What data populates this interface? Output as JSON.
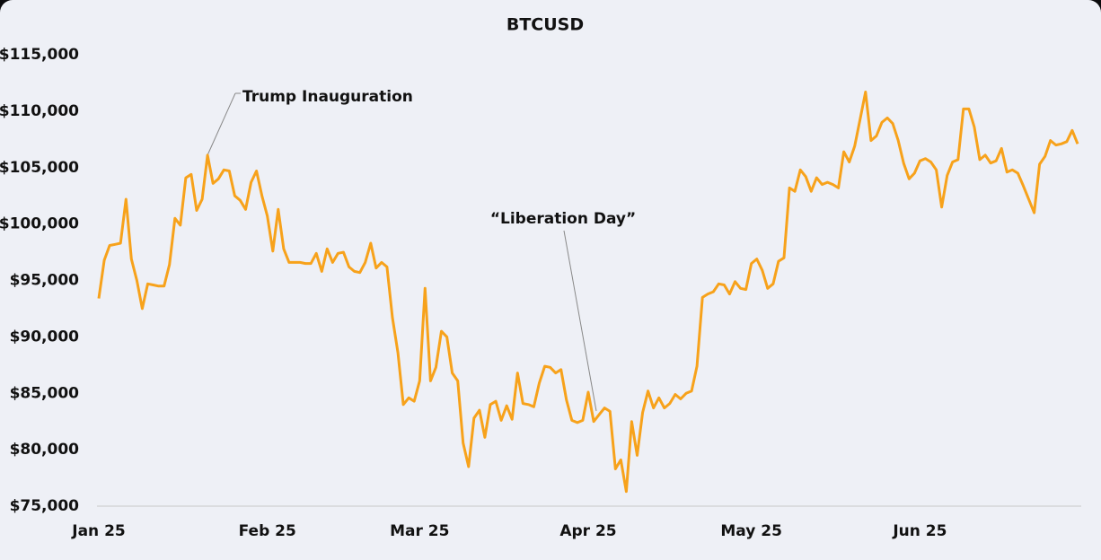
{
  "chart_data": {
    "type": "line",
    "title": "BTCUSD",
    "values": [
      93400,
      96800,
      98100,
      98200,
      98300,
      102200,
      96900,
      95000,
      92500,
      94700,
      94600,
      94500,
      94500,
      96400,
      100500,
      99900,
      104100,
      104400,
      101200,
      102200,
      106100,
      103600,
      104000,
      104800,
      104700,
      102500,
      102100,
      101300,
      103700,
      104700,
      102500,
      100700,
      97600,
      101300,
      97800,
      96600,
      96600,
      96600,
      96500,
      96500,
      97400,
      95800,
      97800,
      96600,
      97400,
      97500,
      96200,
      95800,
      95700,
      96600,
      98300,
      96100,
      96600,
      96200,
      91700,
      88600,
      84000,
      84600,
      84300,
      86100,
      94300,
      86100,
      87300,
      90500,
      90000,
      86800,
      86100,
      80600,
      78500,
      82800,
      83500,
      81100,
      84000,
      84300,
      82600,
      83900,
      82700,
      86800,
      84100,
      84000,
      83800,
      85900,
      87400,
      87300,
      86800,
      87100,
      84400,
      82600,
      82400,
      82600,
      85100,
      82500,
      83100,
      83700,
      83400,
      78300,
      79100,
      76300,
      82500,
      79500,
      83300,
      85200,
      83700,
      84600,
      83700,
      84100,
      84900,
      84500,
      85000,
      85200,
      87400,
      93500,
      93800,
      94000,
      94700,
      94600,
      93800,
      94900,
      94300,
      94200,
      96500,
      96900,
      95900,
      94300,
      94700,
      96700,
      97000,
      103200,
      102900,
      104800,
      104200,
      102900,
      104100,
      103500,
      103700,
      103500,
      103200,
      106400,
      105500,
      106900,
      109300,
      111700,
      107400,
      107800,
      109000,
      109400,
      108900,
      107400,
      105400,
      104000,
      104500,
      105600,
      105800,
      105500,
      104800,
      101500,
      104300,
      105500,
      105700,
      110200,
      110200,
      108600,
      105700,
      106100,
      105400,
      105600,
      106700,
      104600,
      104800,
      104500,
      103400,
      102200,
      101000,
      105300,
      106000,
      107400,
      107000,
      107100,
      107300,
      108300,
      107100
    ],
    "color": "#f7a21b",
    "xlim": [
      0,
      180
    ],
    "xticks": [
      {
        "value": 0,
        "label": "Jan 25"
      },
      {
        "value": 31,
        "label": "Feb 25"
      },
      {
        "value": 59,
        "label": "Mar 25"
      },
      {
        "value": 90,
        "label": "Apr 25"
      },
      {
        "value": 120,
        "label": "May 25"
      },
      {
        "value": 151,
        "label": "Jun 25"
      }
    ],
    "ylim": [
      75000,
      115000
    ],
    "yticks": [
      {
        "value": 75000,
        "label": "$75,000"
      },
      {
        "value": 80000,
        "label": "$80,000"
      },
      {
        "value": 85000,
        "label": "$85,000"
      },
      {
        "value": 90000,
        "label": "$90,000"
      },
      {
        "value": 95000,
        "label": "$95,000"
      },
      {
        "value": 100000,
        "label": "$100,000"
      },
      {
        "value": 105000,
        "label": "$105,000"
      },
      {
        "value": 110000,
        "label": "$110,000"
      },
      {
        "value": 115000,
        "label": "$115,000"
      }
    ],
    "annotations": [
      "Trump Inauguration",
      "“Liberation Day”"
    ]
  }
}
